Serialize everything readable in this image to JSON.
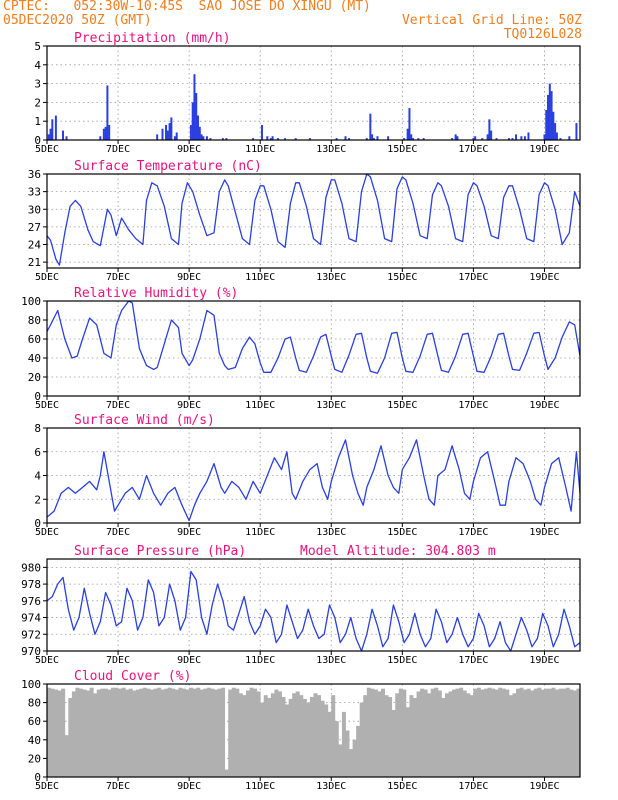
{
  "header": {
    "line1_left": "CPTEC:   052:30W-10:45S  SAO JOSE DO XINGU (MT)",
    "line2_left": "05DEC2020 50Z (GMT)",
    "line2_right": "Vertical Grid Line: 50Z",
    "line3_right": "TQ0126L028"
  },
  "colors": {
    "header": "#f07d1e",
    "title": "#e8127e",
    "line": "#2a3fe0",
    "cloud": "#b0b0b0",
    "grid": "#9a9a9a"
  },
  "x_ticks": [
    "5DEC",
    "7DEC",
    "9DEC",
    "11DEC",
    "13DEC",
    "15DEC",
    "17DEC",
    "19DEC"
  ],
  "x_tick_days": [
    5,
    7,
    9,
    11,
    13,
    15,
    17,
    19
  ],
  "chart_data": [
    {
      "type": "bar",
      "title": "Precipitation (mm/h)",
      "ylim": [
        0,
        5
      ],
      "yticks": [
        0,
        1,
        2,
        3,
        4,
        5
      ],
      "x_unit": "day of December 2020",
      "x": [
        5.05,
        5.1,
        5.15,
        5.25,
        5.45,
        5.55,
        6.5,
        6.6,
        6.65,
        6.7,
        6.75,
        8.1,
        8.25,
        8.35,
        8.4,
        8.45,
        8.5,
        8.6,
        8.65,
        9.05,
        9.1,
        9.15,
        9.2,
        9.25,
        9.3,
        9.35,
        9.4,
        9.5,
        9.6,
        9.95,
        10.05,
        10.8,
        11.05,
        11.2,
        11.3,
        11.35,
        11.5,
        11.7,
        12.0,
        12.4,
        13.15,
        13.4,
        13.5,
        14.0,
        14.1,
        14.15,
        14.2,
        14.3,
        14.6,
        15.05,
        15.15,
        15.2,
        15.25,
        15.3,
        15.45,
        15.6,
        16.4,
        16.5,
        16.55,
        17.0,
        17.05,
        17.25,
        17.4,
        17.45,
        17.5,
        17.65,
        18.0,
        18.1,
        18.2,
        18.35,
        18.45,
        18.55,
        19.0,
        19.05,
        19.1,
        19.15,
        19.2,
        19.25,
        19.3,
        19.35,
        19.45,
        19.7,
        19.9
      ],
      "values": [
        0.3,
        0.6,
        1.1,
        1.3,
        0.5,
        0.2,
        0.2,
        0.6,
        0.7,
        2.9,
        0.8,
        0.3,
        0.6,
        0.8,
        0.5,
        0.9,
        1.2,
        0.2,
        0.4,
        0.8,
        2.0,
        3.5,
        2.5,
        1.3,
        0.7,
        0.3,
        0.2,
        0.2,
        0.1,
        0.1,
        0.1,
        0.1,
        0.8,
        0.2,
        0.1,
        0.2,
        0.1,
        0.1,
        0.1,
        0.1,
        0.1,
        0.2,
        0.1,
        0.1,
        1.4,
        0.3,
        0.1,
        0.2,
        0.2,
        0.1,
        0.6,
        1.7,
        0.3,
        0.1,
        0.1,
        0.1,
        0.1,
        0.3,
        0.2,
        0.1,
        0.2,
        0.1,
        0.3,
        1.1,
        0.5,
        0.1,
        0.1,
        0.1,
        0.3,
        0.2,
        0.2,
        0.4,
        0.3,
        1.6,
        2.4,
        3.0,
        2.6,
        1.5,
        0.9,
        0.4,
        0.1,
        0.2,
        0.9
      ]
    },
    {
      "type": "line",
      "title": "Surface Temperature (nC)",
      "ylim": [
        20,
        36
      ],
      "yticks": [
        21,
        24,
        27,
        30,
        33,
        36
      ],
      "x_unit": "day of December 2020",
      "x": [
        5.0,
        5.1,
        5.25,
        5.35,
        5.5,
        5.65,
        5.8,
        5.95,
        6.15,
        6.3,
        6.5,
        6.7,
        6.8,
        6.95,
        7.1,
        7.3,
        7.5,
        7.7,
        7.8,
        7.95,
        8.1,
        8.3,
        8.5,
        8.7,
        8.8,
        8.95,
        9.1,
        9.3,
        9.5,
        9.7,
        9.85,
        10.0,
        10.1,
        10.3,
        10.5,
        10.7,
        10.85,
        11.0,
        11.1,
        11.3,
        11.5,
        11.7,
        11.85,
        12.0,
        12.1,
        12.3,
        12.5,
        12.7,
        12.85,
        13.0,
        13.1,
        13.3,
        13.5,
        13.7,
        13.85,
        14.0,
        14.1,
        14.3,
        14.5,
        14.7,
        14.85,
        15.0,
        15.1,
        15.3,
        15.5,
        15.7,
        15.85,
        16.0,
        16.1,
        16.3,
        16.5,
        16.7,
        16.85,
        17.0,
        17.1,
        17.3,
        17.5,
        17.7,
        17.85,
        18.0,
        18.1,
        18.3,
        18.5,
        18.7,
        18.85,
        19.0,
        19.1,
        19.3,
        19.5,
        19.7,
        19.85,
        20.0
      ],
      "values": [
        25.5,
        24.7,
        21.5,
        20.5,
        26.0,
        30.5,
        31.5,
        30.5,
        26.5,
        24.5,
        23.8,
        30.0,
        29.0,
        25.5,
        28.5,
        26.5,
        25.0,
        24.0,
        31.5,
        34.5,
        34.0,
        30.5,
        25.0,
        24.0,
        31.0,
        34.5,
        33.0,
        29.0,
        25.5,
        26.0,
        33.0,
        35.0,
        34.0,
        29.5,
        25.0,
        24.0,
        31.5,
        34.0,
        34.0,
        30.0,
        24.5,
        23.5,
        31.0,
        34.5,
        34.5,
        30.5,
        25.0,
        24.0,
        32.0,
        35.0,
        35.0,
        31.0,
        25.0,
        24.5,
        33.0,
        36.0,
        35.5,
        31.5,
        25.0,
        24.5,
        33.5,
        35.5,
        35.0,
        31.0,
        25.5,
        25.0,
        32.5,
        34.5,
        34.0,
        30.5,
        25.0,
        24.5,
        32.5,
        34.5,
        34.0,
        30.5,
        25.5,
        25.0,
        32.0,
        34.0,
        34.0,
        30.0,
        25.0,
        24.5,
        32.5,
        34.5,
        34.0,
        30.0,
        24.0,
        26.0,
        33.0,
        30.5
      ]
    },
    {
      "type": "line",
      "title": "Relative Humidity (%)",
      "ylim": [
        0,
        100
      ],
      "yticks": [
        0,
        20,
        40,
        60,
        80,
        100
      ],
      "x_unit": "day of December 2020",
      "x": [
        5.0,
        5.1,
        5.3,
        5.5,
        5.7,
        5.85,
        6.0,
        6.2,
        6.4,
        6.6,
        6.8,
        6.95,
        7.1,
        7.3,
        7.4,
        7.6,
        7.8,
        8.0,
        8.1,
        8.3,
        8.5,
        8.7,
        8.8,
        9.0,
        9.1,
        9.3,
        9.5,
        9.7,
        9.85,
        10.0,
        10.1,
        10.3,
        10.5,
        10.7,
        10.85,
        11.0,
        11.1,
        11.3,
        11.5,
        11.7,
        11.85,
        12.0,
        12.1,
        12.3,
        12.5,
        12.7,
        12.85,
        13.0,
        13.1,
        13.3,
        13.5,
        13.7,
        13.85,
        14.0,
        14.1,
        14.3,
        14.5,
        14.7,
        14.85,
        15.0,
        15.1,
        15.3,
        15.5,
        15.7,
        15.85,
        16.0,
        16.1,
        16.3,
        16.5,
        16.7,
        16.85,
        17.0,
        17.1,
        17.3,
        17.5,
        17.7,
        17.85,
        18.0,
        18.1,
        18.3,
        18.5,
        18.7,
        18.85,
        19.0,
        19.1,
        19.3,
        19.5,
        19.7,
        19.85,
        20.0
      ],
      "values": [
        68,
        75,
        90,
        60,
        40,
        42,
        60,
        82,
        75,
        45,
        40,
        75,
        90,
        100,
        98,
        50,
        32,
        28,
        30,
        55,
        80,
        72,
        45,
        32,
        38,
        60,
        90,
        85,
        45,
        32,
        28,
        30,
        50,
        62,
        55,
        35,
        25,
        25,
        40,
        60,
        62,
        40,
        27,
        25,
        42,
        62,
        65,
        42,
        28,
        25,
        43,
        65,
        66,
        40,
        26,
        24,
        40,
        66,
        67,
        40,
        26,
        25,
        42,
        65,
        66,
        42,
        27,
        25,
        42,
        65,
        66,
        42,
        26,
        25,
        42,
        65,
        66,
        42,
        28,
        27,
        45,
        66,
        67,
        42,
        28,
        40,
        62,
        78,
        75,
        42
      ]
    },
    {
      "type": "line",
      "title": "Surface Wind (m/s)",
      "ylim": [
        0,
        8
      ],
      "yticks": [
        0,
        2,
        4,
        6,
        8
      ],
      "x_unit": "day of December 2020",
      "x": [
        5.0,
        5.2,
        5.4,
        5.6,
        5.8,
        6.0,
        6.2,
        6.4,
        6.5,
        6.6,
        6.75,
        6.9,
        7.0,
        7.2,
        7.4,
        7.6,
        7.8,
        8.0,
        8.2,
        8.4,
        8.6,
        8.8,
        9.0,
        9.15,
        9.3,
        9.5,
        9.7,
        9.9,
        10.0,
        10.2,
        10.4,
        10.6,
        10.8,
        11.0,
        11.2,
        11.4,
        11.6,
        11.75,
        11.9,
        12.0,
        12.2,
        12.4,
        12.6,
        12.75,
        12.9,
        13.0,
        13.2,
        13.4,
        13.6,
        13.75,
        13.9,
        14.0,
        14.2,
        14.4,
        14.6,
        14.75,
        14.9,
        15.0,
        15.2,
        15.4,
        15.6,
        15.75,
        15.9,
        16.0,
        16.2,
        16.4,
        16.6,
        16.75,
        16.9,
        17.0,
        17.2,
        17.4,
        17.6,
        17.75,
        17.9,
        18.0,
        18.2,
        18.4,
        18.6,
        18.75,
        18.9,
        19.0,
        19.2,
        19.4,
        19.6,
        19.75,
        19.9,
        20.0
      ],
      "values": [
        0.5,
        1.0,
        2.5,
        3.0,
        2.5,
        3.0,
        3.5,
        2.8,
        4.0,
        6.0,
        3.5,
        1.0,
        1.5,
        2.5,
        3.0,
        2.0,
        4.0,
        2.5,
        1.5,
        2.5,
        3.0,
        1.5,
        0.2,
        1.5,
        2.5,
        3.5,
        5.0,
        3.0,
        2.5,
        3.5,
        3.0,
        2.0,
        3.5,
        2.5,
        4.0,
        5.5,
        4.5,
        6.0,
        2.5,
        2.0,
        3.5,
        4.5,
        5.0,
        3.0,
        2.0,
        3.5,
        5.5,
        7.0,
        4.0,
        2.5,
        1.5,
        3.0,
        4.5,
        6.5,
        4.0,
        3.0,
        2.5,
        4.5,
        5.5,
        7.0,
        4.0,
        2.0,
        1.5,
        4.0,
        4.5,
        6.5,
        4.5,
        2.5,
        2.0,
        3.5,
        5.5,
        6.0,
        3.5,
        1.5,
        1.5,
        3.5,
        5.5,
        5.0,
        3.5,
        2.0,
        1.5,
        3.0,
        5.0,
        5.5,
        3.0,
        1.0,
        6.0,
        2.5
      ]
    },
    {
      "type": "line",
      "title": "Surface Pressure (hPa)",
      "annotation": "Model Altitude: 304.803 m",
      "ylim": [
        970,
        981
      ],
      "yticks": [
        970,
        972,
        974,
        976,
        978,
        980
      ],
      "x_unit": "day of December 2020",
      "x": [
        5.0,
        5.15,
        5.3,
        5.45,
        5.6,
        5.75,
        5.9,
        6.05,
        6.2,
        6.35,
        6.5,
        6.65,
        6.8,
        6.95,
        7.1,
        7.25,
        7.4,
        7.55,
        7.7,
        7.85,
        8.0,
        8.15,
        8.3,
        8.45,
        8.6,
        8.75,
        8.9,
        9.05,
        9.2,
        9.35,
        9.5,
        9.65,
        9.8,
        9.95,
        10.1,
        10.25,
        10.4,
        10.55,
        10.7,
        10.85,
        11.0,
        11.15,
        11.3,
        11.45,
        11.6,
        11.75,
        11.9,
        12.05,
        12.2,
        12.35,
        12.5,
        12.65,
        12.8,
        12.95,
        13.1,
        13.25,
        13.4,
        13.55,
        13.7,
        13.85,
        14.0,
        14.15,
        14.3,
        14.45,
        14.6,
        14.75,
        14.9,
        15.05,
        15.2,
        15.35,
        15.5,
        15.65,
        15.8,
        15.95,
        16.1,
        16.25,
        16.4,
        16.55,
        16.7,
        16.85,
        17.0,
        17.15,
        17.3,
        17.45,
        17.6,
        17.75,
        17.9,
        18.05,
        18.2,
        18.35,
        18.5,
        18.65,
        18.8,
        18.95,
        19.1,
        19.25,
        19.4,
        19.55,
        19.7,
        19.85,
        20.0
      ],
      "values": [
        976,
        976.5,
        978,
        978.8,
        975,
        972.5,
        974,
        977.5,
        974.5,
        972,
        973.5,
        977,
        975.5,
        973,
        973.5,
        977.5,
        976,
        972.5,
        974,
        978.5,
        977,
        973,
        974,
        978,
        976,
        972.5,
        974,
        979.5,
        978.5,
        974,
        972,
        975.5,
        978,
        976,
        973,
        972.5,
        974.5,
        976.5,
        973.5,
        972,
        973,
        975,
        974,
        971,
        972,
        975.5,
        973.5,
        971.5,
        972.5,
        975,
        973,
        971.5,
        972,
        975.5,
        974,
        971,
        972,
        974,
        971.5,
        970,
        972,
        975,
        973,
        970.5,
        971.5,
        975.5,
        973.5,
        971,
        972,
        974.5,
        972,
        970.5,
        971.5,
        975,
        973.5,
        971,
        972,
        974,
        972,
        970.5,
        971.5,
        974.5,
        973,
        970.5,
        971.5,
        973.5,
        971,
        970,
        972,
        974,
        972.5,
        970.5,
        971.5,
        974.5,
        973,
        970.5,
        972,
        975,
        973,
        970.5,
        971
      ]
    },
    {
      "type": "bar",
      "title": "Cloud Cover (%)",
      "ylim": [
        0,
        100
      ],
      "yticks": [
        0,
        20,
        40,
        60,
        80,
        100
      ],
      "x_unit": "day of December 2020",
      "x": [
        5.0,
        5.1,
        5.2,
        5.3,
        5.4,
        5.5,
        5.6,
        5.7,
        5.8,
        5.9,
        6.0,
        6.1,
        6.2,
        6.3,
        6.4,
        6.5,
        6.6,
        6.7,
        6.8,
        6.9,
        7.0,
        7.1,
        7.2,
        7.3,
        7.4,
        7.5,
        7.6,
        7.7,
        7.8,
        7.9,
        8.0,
        8.1,
        8.2,
        8.3,
        8.4,
        8.5,
        8.6,
        8.7,
        8.8,
        8.9,
        9.0,
        9.1,
        9.2,
        9.3,
        9.4,
        9.5,
        9.6,
        9.7,
        9.8,
        9.9,
        10.0,
        10.1,
        10.2,
        10.3,
        10.4,
        10.5,
        10.6,
        10.7,
        10.8,
        10.9,
        11.0,
        11.1,
        11.2,
        11.3,
        11.4,
        11.5,
        11.6,
        11.7,
        11.8,
        11.9,
        12.0,
        12.1,
        12.2,
        12.3,
        12.4,
        12.5,
        12.6,
        12.7,
        12.8,
        12.9,
        13.0,
        13.1,
        13.2,
        13.3,
        13.4,
        13.5,
        13.6,
        13.7,
        13.8,
        13.9,
        14.0,
        14.1,
        14.2,
        14.3,
        14.4,
        14.5,
        14.6,
        14.7,
        14.8,
        14.9,
        15.0,
        15.1,
        15.2,
        15.3,
        15.4,
        15.5,
        15.6,
        15.7,
        15.8,
        15.9,
        16.0,
        16.1,
        16.2,
        16.3,
        16.4,
        16.5,
        16.6,
        16.7,
        16.8,
        16.9,
        17.0,
        17.1,
        17.2,
        17.3,
        17.4,
        17.5,
        17.6,
        17.7,
        17.8,
        17.9,
        18.0,
        18.1,
        18.2,
        18.3,
        18.4,
        18.5,
        18.6,
        18.7,
        18.8,
        18.9,
        19.0,
        19.1,
        19.2,
        19.3,
        19.4,
        19.5,
        19.6,
        19.7,
        19.8,
        19.9
      ],
      "values": [
        96,
        95,
        94,
        93,
        95,
        45,
        85,
        92,
        96,
        95,
        94,
        93,
        96,
        90,
        94,
        95,
        95,
        94,
        96,
        96,
        95,
        96,
        94,
        95,
        93,
        94,
        95,
        96,
        95,
        94,
        95,
        96,
        94,
        95,
        96,
        95,
        94,
        96,
        95,
        94,
        96,
        95,
        96,
        94,
        95,
        96,
        95,
        94,
        95,
        96,
        8,
        94,
        96,
        95,
        90,
        88,
        93,
        96,
        95,
        92,
        80,
        88,
        85,
        90,
        94,
        92,
        86,
        78,
        84,
        90,
        92,
        88,
        84,
        80,
        86,
        90,
        88,
        82,
        78,
        70,
        88,
        60,
        35,
        70,
        50,
        30,
        40,
        55,
        80,
        88,
        96,
        95,
        94,
        92,
        95,
        88,
        86,
        72,
        90,
        95,
        94,
        75,
        88,
        85,
        92,
        95,
        94,
        90,
        95,
        96,
        93,
        85,
        90,
        92,
        94,
        95,
        96,
        93,
        90,
        88,
        95,
        96,
        94,
        95,
        96,
        95,
        94,
        96,
        95,
        94,
        88,
        90,
        95,
        96,
        94,
        95,
        93,
        95,
        96,
        94,
        95,
        95,
        96,
        94,
        95,
        95,
        96,
        94,
        93,
        95
      ]
    }
  ]
}
